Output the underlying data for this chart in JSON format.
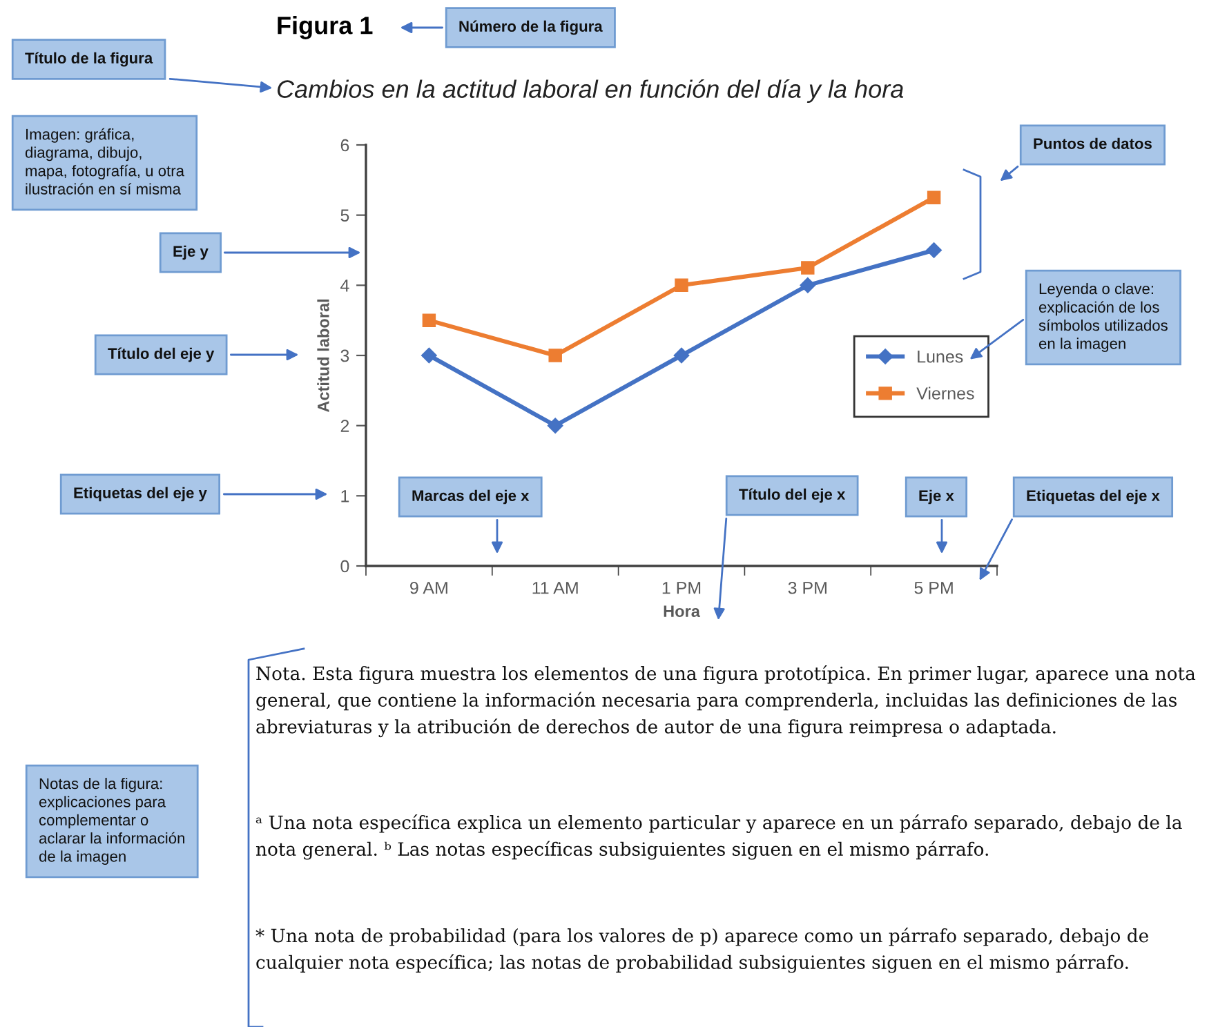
{
  "chart_data": {
    "type": "line",
    "title": "Figura 1",
    "subtitle": "Cambios en la actitud laboral en función del día y la hora",
    "xlabel": "Hora",
    "ylabel": "Actitud laboral",
    "categories": [
      "9 AM",
      "11 AM",
      "1 PM",
      "3 PM",
      "5 PM"
    ],
    "series": [
      {
        "name": "Lunes",
        "color": "#4472c4",
        "marker": "diamond",
        "values": [
          3,
          2,
          3,
          4,
          4.5
        ]
      },
      {
        "name": "Viernes",
        "color": "#ed7d31",
        "marker": "square",
        "values": [
          3.5,
          3,
          4,
          4.25,
          5.25
        ]
      }
    ],
    "ylim": [
      0,
      6
    ],
    "yticks": [
      0,
      1,
      2,
      3,
      4,
      5,
      6
    ],
    "grid": false,
    "legend": "center right",
    "line_style": "solid",
    "annotations": [
      "Número de la figura",
      "Título de la figura",
      "Imagen: gráfica,\ndiagrama, dibujo,\nmapa, fotografía, u otra\nilustración en sí misma",
      "Eje y",
      "Título del eje y",
      "Etiquetas del eje y",
      "Marcas del eje x",
      "Título del eje x",
      "Eje x",
      "Etiquetas del eje x",
      "Puntos de datos",
      "Leyenda o clave:\nexplicación de los\nsímbolos utilizados\nen la imagen",
      "Notas de la figura:\nexplicaciones para\ncomplementar o\naclarar la información\nde la imagen",
      "Nota. Esta figura muestra los elementos de una figura prototípica. En primer lugar, aparece una nota general, que contiene la información necesaria para comprenderla, incluidas las definiciones de las abreviaturas y la atribución de derechos de autor de una figura reimpresa o adaptada.",
      "ᵃ Una nota específica explica un elemento particular y aparece en un párrafo separado, debajo de la nota general. ᵇ Las notas específicas subsiguientes siguen en el mismo párrafo.",
      "* Una nota de probabilidad (para los valores de p) aparece como un párrafo separado, debajo de cualquier nota específica; las notas de probabilidad subsiguientes siguen en el mismo párrafo."
    ]
  }
}
